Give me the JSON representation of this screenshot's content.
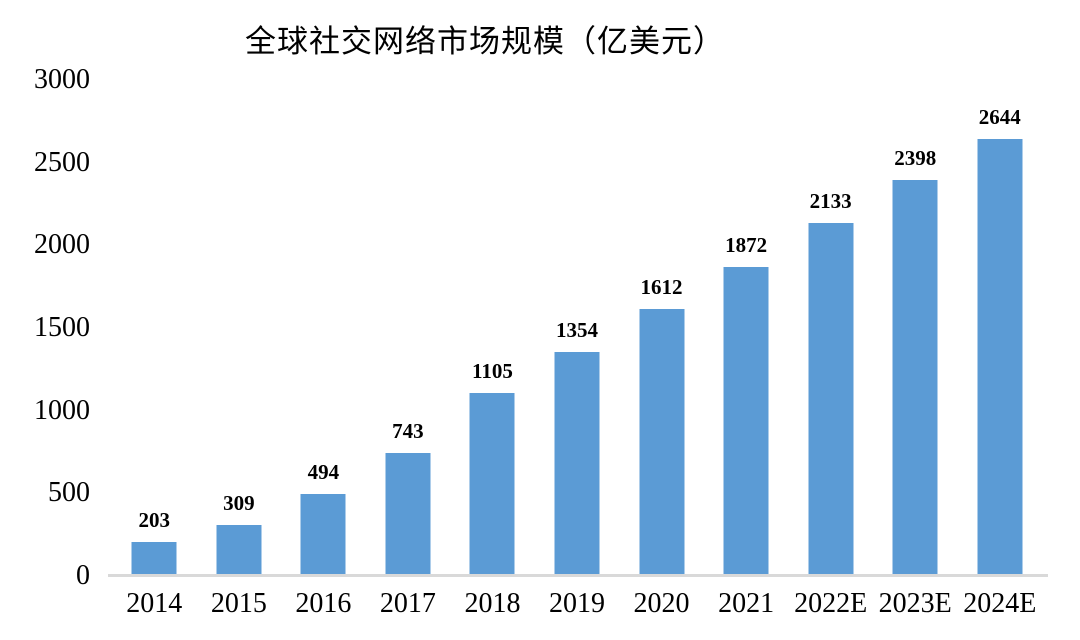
{
  "title": "全球社交网络市场规模（亿美元）",
  "colors": {
    "bar": "#5B9BD5",
    "axis_line": "#D9D9D9",
    "text": "#000000",
    "background": "#FFFFFF"
  },
  "chart_data": {
    "type": "bar",
    "title": "全球社交网络市场规模（亿美元）",
    "categories": [
      "2014",
      "2015",
      "2016",
      "2017",
      "2018",
      "2019",
      "2020",
      "2021",
      "2022E",
      "2023E",
      "2024E"
    ],
    "values": [
      203,
      309,
      494,
      743,
      1105,
      1354,
      1612,
      1872,
      2133,
      2398,
      2644
    ],
    "xlabel": "",
    "ylabel": "",
    "ylim": [
      0,
      3000
    ],
    "yticks": [
      0,
      500,
      1000,
      1500,
      2000,
      2500,
      3000
    ],
    "grid": false,
    "legend": "none",
    "data_labels": true
  }
}
